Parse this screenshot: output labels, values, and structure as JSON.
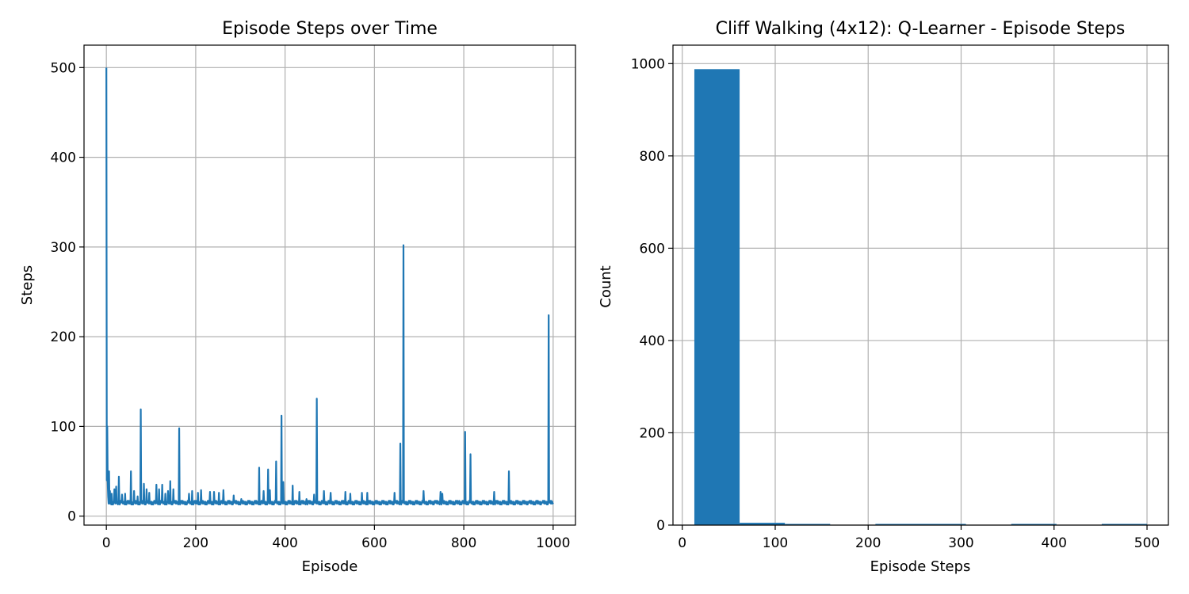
{
  "chart_data": [
    {
      "type": "line",
      "title": "Episode Steps over Time",
      "xlabel": "Episode",
      "ylabel": "Steps",
      "xlim": [
        -50,
        1050
      ],
      "ylim": [
        -10,
        525
      ],
      "xticks": [
        0,
        200,
        400,
        600,
        800,
        1000
      ],
      "yticks": [
        0,
        100,
        200,
        300,
        400,
        500
      ],
      "grid": true,
      "color": "#1f77b4",
      "series": [
        {
          "baseline": 13,
          "noise_values": [
            13,
            14,
            15,
            16,
            17
          ],
          "spikes": [
            [
              0,
              500
            ],
            [
              1,
              40
            ],
            [
              2,
              100
            ],
            [
              3,
              38
            ],
            [
              4,
              22
            ],
            [
              6,
              50
            ],
            [
              8,
              28
            ],
            [
              12,
              25
            ],
            [
              18,
              30
            ],
            [
              22,
              33
            ],
            [
              28,
              44
            ],
            [
              35,
              24
            ],
            [
              42,
              25
            ],
            [
              55,
              50
            ],
            [
              62,
              28
            ],
            [
              70,
              22
            ],
            [
              77,
              119
            ],
            [
              84,
              36
            ],
            [
              90,
              30
            ],
            [
              96,
              26
            ],
            [
              112,
              35
            ],
            [
              118,
              30
            ],
            [
              125,
              35
            ],
            [
              132,
              25
            ],
            [
              138,
              28
            ],
            [
              143,
              39
            ],
            [
              150,
              30
            ],
            [
              163,
              98
            ],
            [
              185,
              25
            ],
            [
              192,
              28
            ],
            [
              205,
              26
            ],
            [
              212,
              29
            ],
            [
              232,
              27
            ],
            [
              241,
              27
            ],
            [
              252,
              26
            ],
            [
              262,
              29
            ],
            [
              285,
              23
            ],
            [
              302,
              19
            ],
            [
              342,
              54
            ],
            [
              352,
              28
            ],
            [
              362,
              52
            ],
            [
              366,
              29
            ],
            [
              380,
              61
            ],
            [
              392,
              112
            ],
            [
              396,
              38
            ],
            [
              417,
              34
            ],
            [
              432,
              27
            ],
            [
              448,
              19
            ],
            [
              465,
              24
            ],
            [
              471,
              131
            ],
            [
              487,
              28
            ],
            [
              502,
              26
            ],
            [
              535,
              27
            ],
            [
              546,
              25
            ],
            [
              572,
              26
            ],
            [
              584,
              26
            ],
            [
              645,
              26
            ],
            [
              658,
              81
            ],
            [
              665,
              302
            ],
            [
              710,
              28
            ],
            [
              735,
              17
            ],
            [
              748,
              27
            ],
            [
              752,
              25
            ],
            [
              790,
              17
            ],
            [
              803,
              94
            ],
            [
              815,
              69
            ],
            [
              868,
              27
            ],
            [
              901,
              50
            ],
            [
              945,
              16
            ],
            [
              975,
              15
            ],
            [
              990,
              224
            ],
            [
              1000,
              15
            ]
          ]
        }
      ]
    },
    {
      "type": "bar",
      "title": "Cliff Walking (4x12): Q-Learner - Episode Steps",
      "xlabel": "Episode Steps",
      "ylabel": "Count",
      "xlim": [
        -10,
        523
      ],
      "ylim": [
        0,
        1040
      ],
      "xticks": [
        0,
        100,
        200,
        300,
        400,
        500
      ],
      "yticks": [
        0,
        200,
        400,
        600,
        800,
        1000
      ],
      "grid": true,
      "color": "#1f77b4",
      "bin_edges": [
        13,
        61.7,
        110.4,
        159.1,
        207.8,
        256.5,
        305.2,
        353.9,
        402.6,
        451.3,
        500
      ],
      "values": [
        988,
        5,
        2,
        0,
        1,
        1,
        0,
        1,
        0,
        1
      ]
    }
  ]
}
